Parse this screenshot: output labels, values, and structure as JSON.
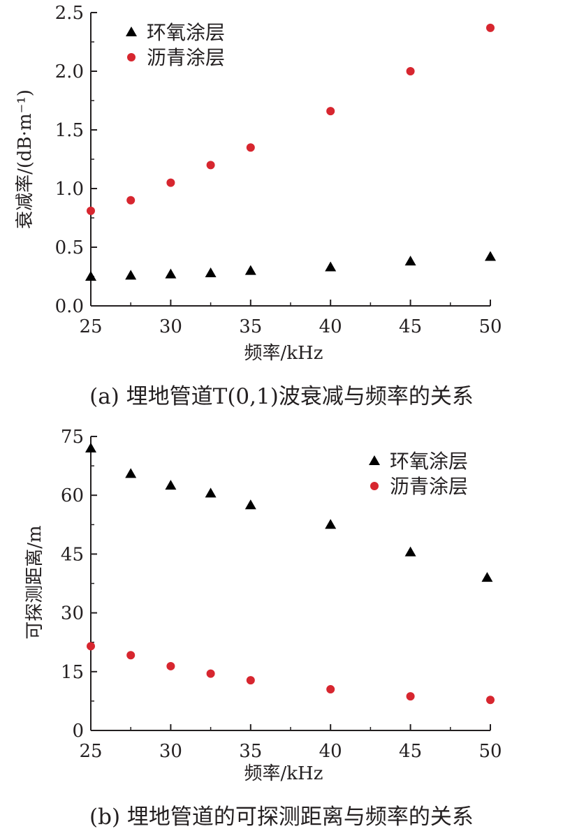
{
  "colors": {
    "epoxy": "#000000",
    "asphalt": "#d7262f",
    "axis": "#231f20"
  },
  "chart_data": [
    {
      "type": "scatter",
      "caption": "(a) 埋地管道T(0,1)波衰减与频率的关系",
      "xlabel": "频率/kHz",
      "ylabel": "衰减率/(dB·m⁻¹)",
      "xlim": [
        25,
        50
      ],
      "ylim": [
        0,
        2.5
      ],
      "xticks": [
        25,
        30,
        35,
        40,
        45,
        50
      ],
      "yticks": [
        "0.0",
        "0.5",
        "1.0",
        "1.5",
        "2.0",
        "2.5"
      ],
      "legend_position": "top-left",
      "grid": false,
      "series": [
        {
          "name": "环氧涂层",
          "marker": "triangle",
          "color": "#000000",
          "x": [
            25,
            27.5,
            30,
            32.5,
            35,
            40,
            45,
            50
          ],
          "y": [
            0.25,
            0.26,
            0.27,
            0.28,
            0.3,
            0.33,
            0.38,
            0.42
          ]
        },
        {
          "name": "沥青涂层",
          "marker": "circle",
          "color": "#d7262f",
          "x": [
            25,
            27.5,
            30,
            32.5,
            35,
            40,
            45,
            50
          ],
          "y": [
            0.81,
            0.9,
            1.05,
            1.2,
            1.35,
            1.66,
            2.0,
            2.37
          ]
        }
      ]
    },
    {
      "type": "scatter",
      "caption": "(b) 埋地管道的可探测距离与频率的关系",
      "xlabel": "频率/kHz",
      "ylabel": "可探测距离/m",
      "xlim": [
        25,
        50
      ],
      "ylim": [
        0,
        75
      ],
      "xticks": [
        25,
        30,
        35,
        40,
        45,
        50
      ],
      "yticks": [
        "0",
        "15",
        "30",
        "45",
        "60",
        "75"
      ],
      "legend_position": "top-right",
      "grid": false,
      "series": [
        {
          "name": "环氧涂层",
          "marker": "triangle",
          "color": "#000000",
          "x": [
            25,
            27.5,
            30,
            32.5,
            35,
            40,
            45,
            49.8
          ],
          "y": [
            72,
            65.5,
            62.5,
            60.5,
            57.5,
            52.5,
            45.5,
            39
          ]
        },
        {
          "name": "沥青涂层",
          "marker": "circle",
          "color": "#d7262f",
          "x": [
            25,
            27.5,
            30,
            32.5,
            35,
            40,
            45,
            50
          ],
          "y": [
            21.5,
            19.2,
            16.4,
            14.5,
            12.8,
            10.5,
            8.7,
            7.8
          ]
        }
      ]
    }
  ]
}
